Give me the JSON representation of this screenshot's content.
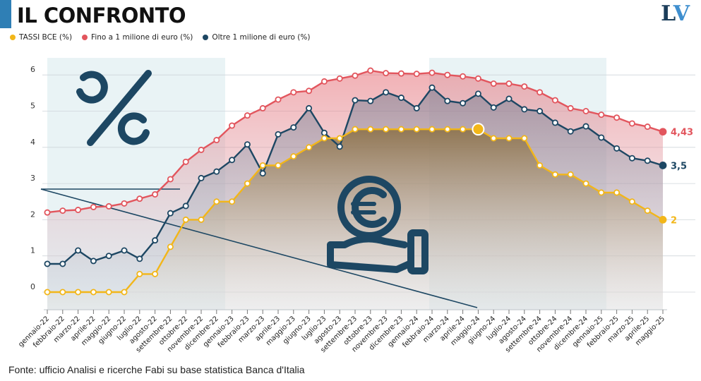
{
  "header": {
    "title": "IL CONFRONTO",
    "logo": "LV"
  },
  "source": "Fonte: ufficio Analisi e ricerche Fabi su base statistica Banca d'Italia",
  "colors": {
    "bce": "#f2b619",
    "small": "#e2555d",
    "large": "#1d4763",
    "accent": "#2f7fb5",
    "shade": "#e9f3f5"
  },
  "chart_data": {
    "type": "line",
    "ylim": [
      0,
      6
    ],
    "yticks": [
      "0",
      "1",
      "2",
      "3",
      "4",
      "5",
      "6"
    ],
    "categories": [
      "gennaio-22",
      "febbraio-22",
      "marzo-22",
      "aprile-22",
      "maggio-22",
      "giugno-22",
      "luglio-22",
      "agosto-22",
      "settembre-22",
      "ottobre-22",
      "novembre-22",
      "dicembre-22",
      "gennaio-23",
      "febbraio-23",
      "marzo-23",
      "aprile-23",
      "maggio-23",
      "giugno-23",
      "luglio-23",
      "agosto-23",
      "settembre-23",
      "ottobre-23",
      "novembre-23",
      "dicembre-23",
      "gennaio-24",
      "febbraio-24",
      "marzo-24",
      "aprile-24",
      "maggio-24",
      "giugno-24",
      "luglio-24",
      "agosto-24",
      "settembre-24",
      "ottobre-24",
      "novembre-24",
      "dicembre-24",
      "gennaio-25",
      "febbraio-25",
      "marzo-25",
      "aprile-25",
      "maggio-25"
    ],
    "series": [
      {
        "key": "small",
        "name": "Fino a 1 milione di euro (%)",
        "end_label": "4,43",
        "values": [
          2.2,
          2.25,
          2.27,
          2.35,
          2.37,
          2.45,
          2.58,
          2.7,
          3.12,
          3.6,
          3.93,
          4.2,
          4.6,
          4.88,
          5.08,
          5.32,
          5.52,
          5.56,
          5.82,
          5.9,
          5.98,
          6.12,
          6.05,
          6.04,
          6.03,
          6.06,
          6.0,
          5.96,
          5.9,
          5.76,
          5.76,
          5.68,
          5.52,
          5.3,
          5.08,
          5.0,
          4.9,
          4.82,
          4.66,
          4.57,
          4.43
        ]
      },
      {
        "key": "large",
        "name": "Oltre 1 milione di euro (%)",
        "end_label": "3,5",
        "values": [
          0.78,
          0.78,
          1.15,
          0.86,
          1.0,
          1.15,
          0.92,
          1.43,
          2.18,
          2.38,
          3.15,
          3.33,
          3.65,
          4.08,
          3.28,
          4.36,
          4.55,
          5.08,
          4.4,
          4.02,
          5.3,
          5.28,
          5.52,
          5.37,
          5.08,
          5.65,
          5.28,
          5.22,
          5.48,
          5.1,
          5.34,
          5.05,
          5.0,
          4.68,
          4.44,
          4.58,
          4.27,
          3.97,
          3.7,
          3.63,
          3.5
        ]
      },
      {
        "key": "bce",
        "name": "TASSI BCE (%)",
        "end_label": "2",
        "values": [
          0.0,
          0.0,
          0.0,
          0.0,
          0.0,
          0.0,
          0.5,
          0.5,
          1.25,
          2.0,
          2.0,
          2.5,
          2.5,
          3.0,
          3.5,
          3.5,
          3.75,
          4.0,
          4.25,
          4.25,
          4.5,
          4.5,
          4.5,
          4.5,
          4.5,
          4.5,
          4.5,
          4.5,
          4.5,
          4.25,
          4.25,
          4.25,
          3.5,
          3.25,
          3.25,
          3.0,
          2.75,
          2.75,
          2.5,
          2.25,
          2.0
        ]
      }
    ],
    "legend_order": [
      "bce",
      "small",
      "large"
    ],
    "legend_position": "top-left",
    "grid": true
  }
}
